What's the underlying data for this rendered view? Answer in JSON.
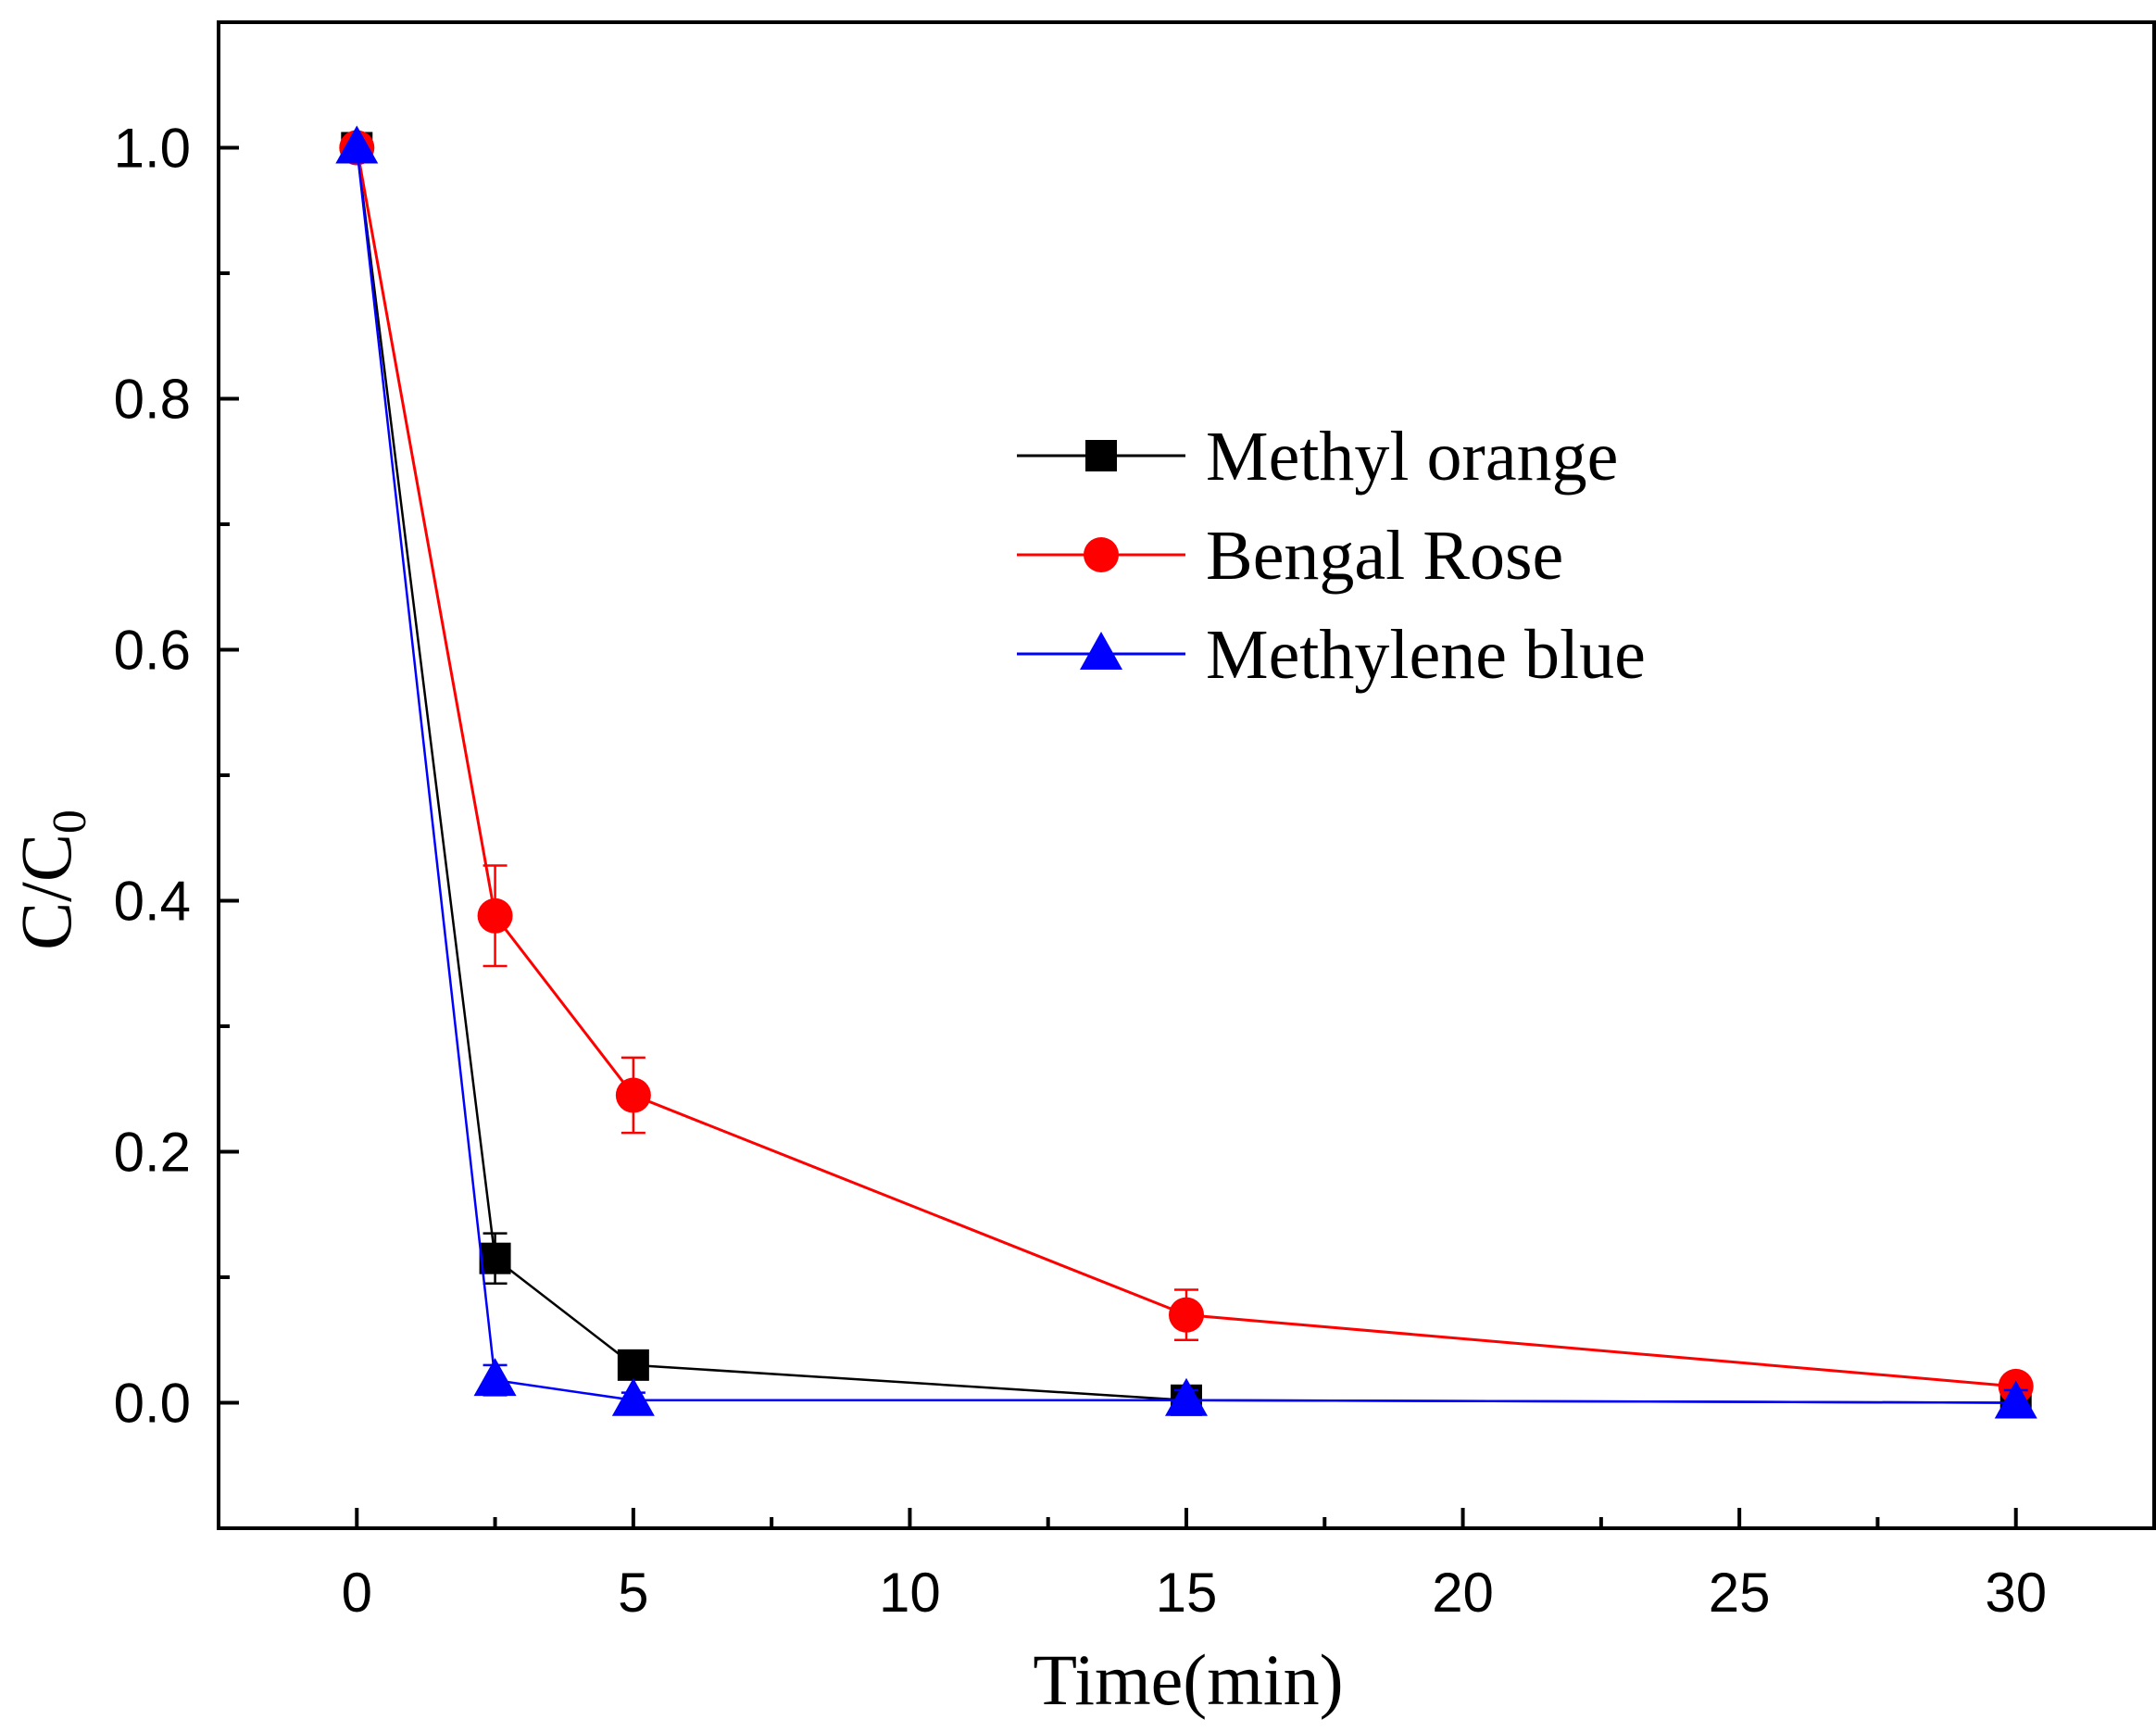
{
  "chart_data": {
    "type": "line",
    "title": "",
    "xlabel": "Time(min)",
    "ylabel_main": "C/C",
    "ylabel_sub": "0",
    "xlim": [
      -2.5,
      32.5
    ],
    "ylim": [
      -0.1,
      1.1
    ],
    "x_ticks": [
      0,
      5,
      10,
      15,
      20,
      25,
      30
    ],
    "x_tick_labels": [
      "0",
      "5",
      "10",
      "15",
      "20",
      "25",
      "30"
    ],
    "y_ticks": [
      0.0,
      0.2,
      0.4,
      0.6,
      0.8,
      1.0
    ],
    "y_tick_labels": [
      "0.0",
      "0.2",
      "0.4",
      "0.6",
      "0.8",
      "1.0"
    ],
    "x_minor_ticks": [
      -2.5,
      2.5,
      7.5,
      12.5,
      17.5,
      22.5,
      27.5,
      32.5
    ],
    "y_minor_ticks": [
      -0.1,
      0.1,
      0.3,
      0.5,
      0.7,
      0.9,
      1.1
    ],
    "grid": false,
    "legend_position": "top-right",
    "series": [
      {
        "name": "Methyl orange",
        "color": "#000000",
        "marker": "square",
        "x": [
          0,
          2.5,
          5,
          15,
          30
        ],
        "y": [
          1.0,
          0.115,
          0.03,
          0.002,
          0.0
        ],
        "err": [
          0.0,
          0.02,
          0.0,
          0.0,
          0.0
        ]
      },
      {
        "name": "Bengal Rose",
        "color": "#ff0000",
        "marker": "circle",
        "x": [
          0,
          2.5,
          5,
          15,
          30
        ],
        "y": [
          1.0,
          0.388,
          0.245,
          0.07,
          0.013
        ],
        "err": [
          0.0,
          0.04,
          0.03,
          0.02,
          0.0
        ]
      },
      {
        "name": "Methylene blue",
        "color": "#0000ff",
        "marker": "triangle",
        "x": [
          0,
          2.5,
          5,
          15,
          30
        ],
        "y": [
          1.0,
          0.018,
          0.002,
          0.002,
          0.0
        ],
        "err": [
          0.0,
          0.012,
          0.006,
          0.008,
          0.01
        ]
      }
    ]
  }
}
